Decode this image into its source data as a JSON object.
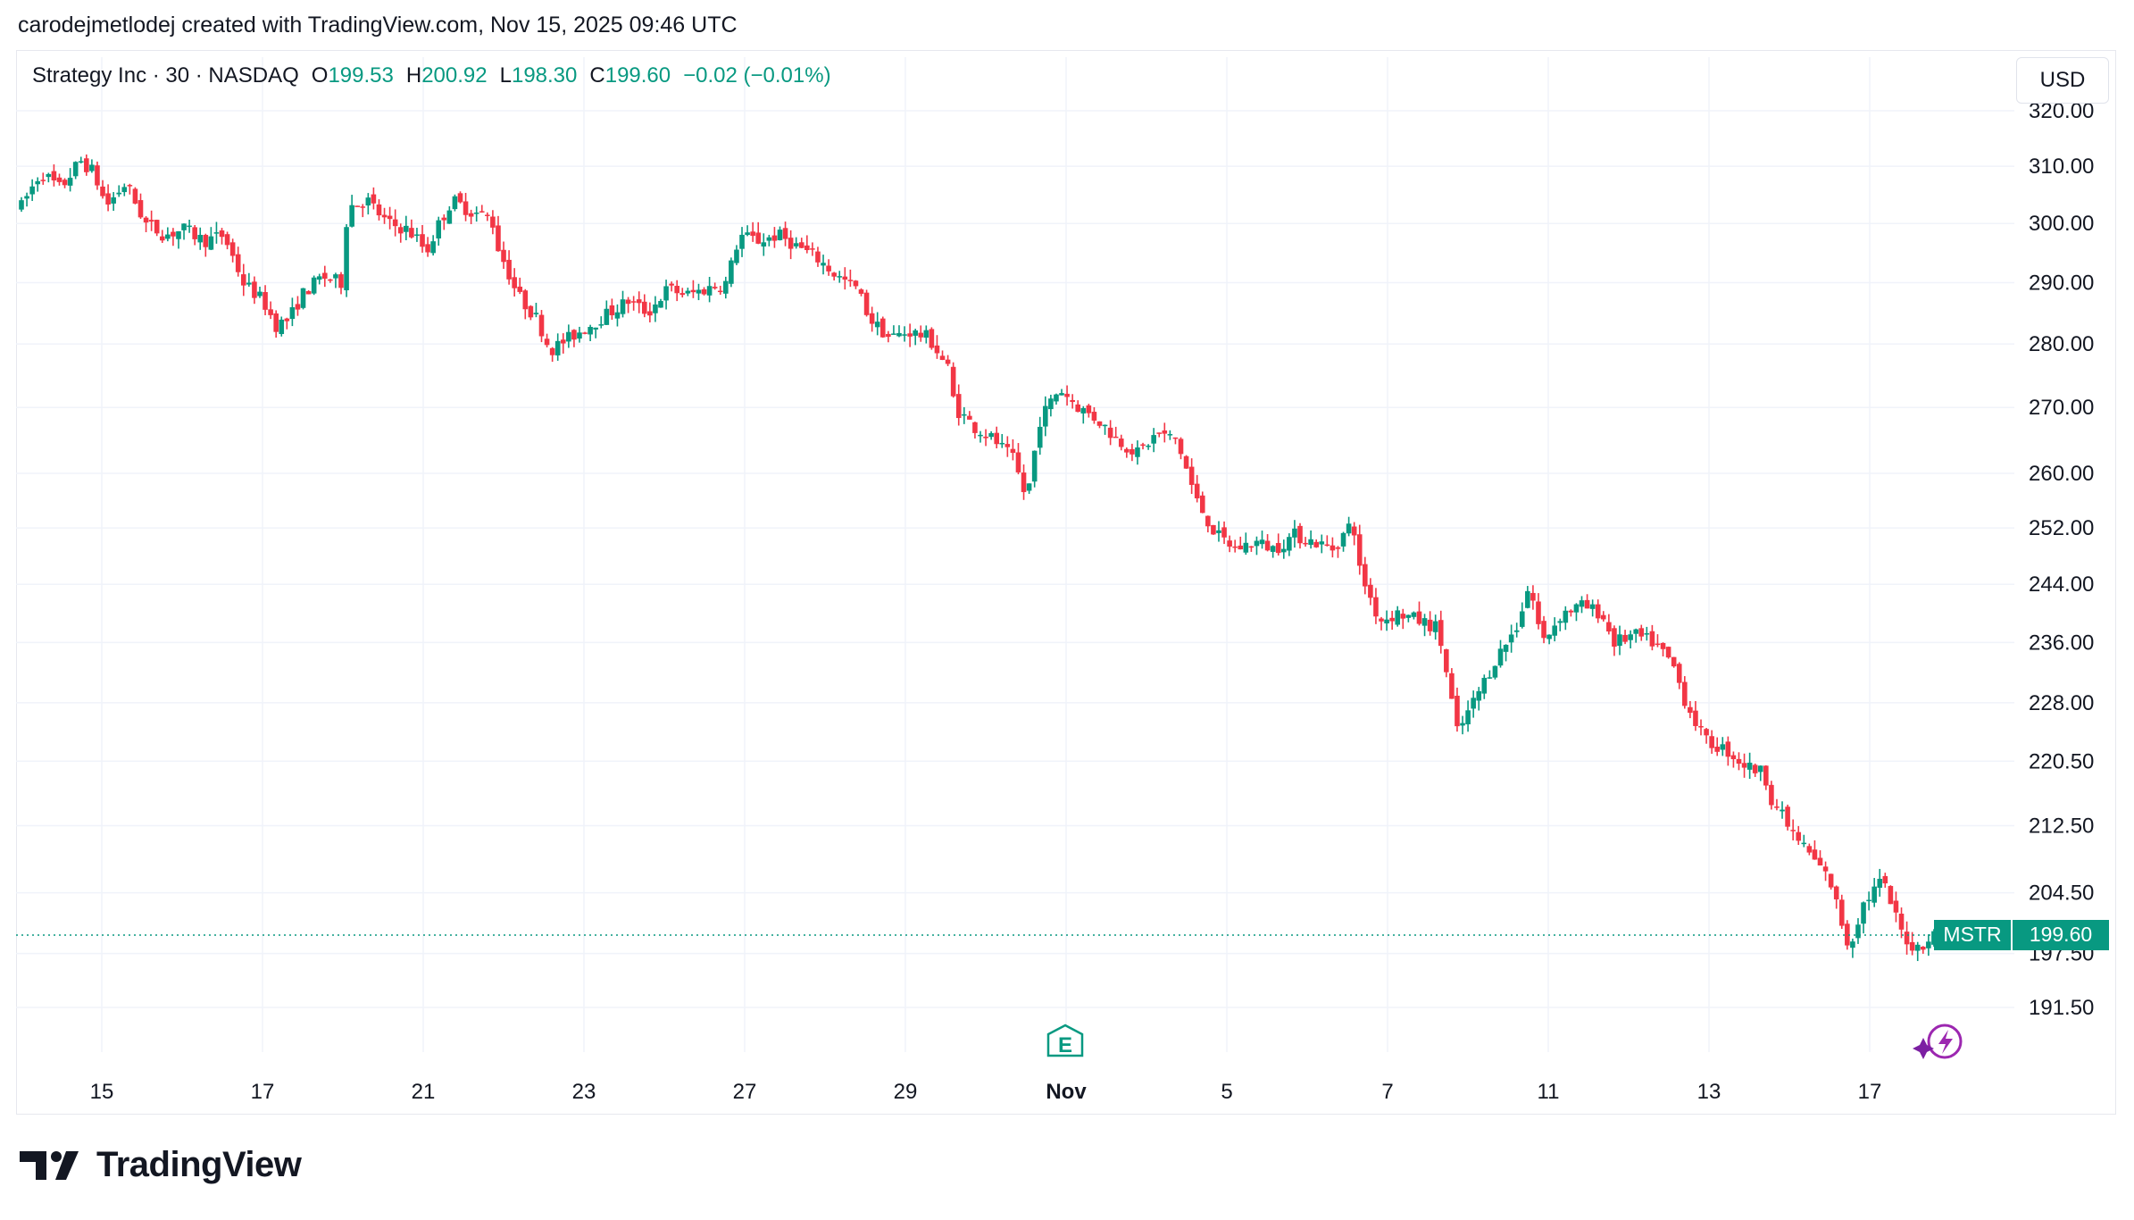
{
  "header": {
    "attribution": "carodejmetlodej created with TradingView.com, Nov 15, 2025 09:46 UTC"
  },
  "legend": {
    "symbol": "Strategy Inc · 30 · NASDAQ",
    "open_key": "O",
    "open": "199.53",
    "high_key": "H",
    "high": "200.92",
    "low_key": "L",
    "low": "198.30",
    "close_key": "C",
    "close": "199.60",
    "change": "−0.02 (−0.01%)"
  },
  "currency": "USD",
  "price_tag": {
    "ticker": "MSTR",
    "price": "199.60"
  },
  "brand": "TradingView",
  "colors": {
    "up": "#089981",
    "down": "#F23645",
    "grid": "#F0F3FA",
    "text": "#131722"
  },
  "icons": {
    "earnings": "E",
    "spark": "lightning-icon"
  },
  "chart_data": {
    "type": "candlestick",
    "y_scale": "log",
    "ylim": [
      186,
      323
    ],
    "y_ticks": [
      "320.00",
      "310.00",
      "300.00",
      "290.00",
      "280.00",
      "270.00",
      "260.00",
      "252.00",
      "244.00",
      "236.00",
      "228.00",
      "220.50",
      "212.50",
      "204.50",
      "197.50",
      "191.50"
    ],
    "x_ticks": [
      {
        "label": "15",
        "day": 15,
        "bold": false
      },
      {
        "label": "17",
        "day": 17,
        "bold": false
      },
      {
        "label": "21",
        "day": 21,
        "bold": false
      },
      {
        "label": "23",
        "day": 23,
        "bold": false
      },
      {
        "label": "27",
        "day": 27,
        "bold": false
      },
      {
        "label": "29",
        "day": 29,
        "bold": false
      },
      {
        "label": "Nov",
        "day": 32,
        "bold": true
      },
      {
        "label": "5",
        "day": 36,
        "bold": false
      },
      {
        "label": "7",
        "day": 38,
        "bold": false
      },
      {
        "label": "11",
        "day": 42,
        "bold": false
      },
      {
        "label": "13",
        "day": 44,
        "bold": false
      },
      {
        "label": "17",
        "day": 48,
        "bold": false
      }
    ],
    "x_axis_note": "sessions: Oct 14-17, 20-24, 27-31, Nov 3-7, 10-14; x index is trading sessions",
    "last_price": 199.6,
    "closes_path": [
      [
        0,
        303
      ],
      [
        0.3,
        309
      ],
      [
        0.6,
        306
      ],
      [
        0.9,
        311
      ],
      [
        1.1,
        309
      ],
      [
        1.3,
        303
      ],
      [
        1.6,
        307
      ],
      [
        1.9,
        300
      ],
      [
        2.2,
        298
      ],
      [
        2.5,
        299
      ],
      [
        2.8,
        297
      ],
      [
        3.1,
        298
      ],
      [
        3.4,
        290
      ],
      [
        3.7,
        287
      ],
      [
        3.9,
        283
      ],
      [
        4.1,
        284
      ],
      [
        4.3,
        288
      ],
      [
        4.6,
        291
      ],
      [
        4.9,
        290
      ],
      [
        5.0,
        303
      ],
      [
        5.3,
        304
      ],
      [
        5.6,
        300
      ],
      [
        5.9,
        299
      ],
      [
        6.1,
        297
      ],
      [
        6.2,
        295
      ],
      [
        6.4,
        300
      ],
      [
        6.6,
        304
      ],
      [
        6.9,
        302
      ],
      [
        7.2,
        301
      ],
      [
        7.3,
        296
      ],
      [
        7.6,
        288
      ],
      [
        7.9,
        284
      ],
      [
        8.1,
        279
      ],
      [
        8.4,
        281
      ],
      [
        8.7,
        283
      ],
      [
        9.0,
        285
      ],
      [
        9.3,
        287
      ],
      [
        9.6,
        285
      ],
      [
        9.9,
        289
      ],
      [
        10.2,
        288
      ],
      [
        10.5,
        289
      ],
      [
        10.8,
        290
      ],
      [
        11.0,
        298
      ],
      [
        11.3,
        297
      ],
      [
        11.6,
        298
      ],
      [
        11.9,
        296
      ],
      [
        12.2,
        294
      ],
      [
        12.5,
        291
      ],
      [
        12.8,
        289
      ],
      [
        13.0,
        284
      ],
      [
        13.3,
        281
      ],
      [
        13.6,
        282
      ],
      [
        13.9,
        281
      ],
      [
        14.2,
        276
      ],
      [
        14.3,
        270
      ],
      [
        14.6,
        267
      ],
      [
        14.9,
        265
      ],
      [
        15.2,
        262
      ],
      [
        15.4,
        256
      ],
      [
        15.6,
        268
      ],
      [
        15.9,
        273
      ],
      [
        16.2,
        270
      ],
      [
        16.5,
        268
      ],
      [
        16.8,
        265
      ],
      [
        17.1,
        263
      ],
      [
        17.4,
        266
      ],
      [
        17.7,
        265
      ],
      [
        18.0,
        256
      ],
      [
        18.3,
        251
      ],
      [
        18.6,
        249
      ],
      [
        18.9,
        250
      ],
      [
        19.2,
        249
      ],
      [
        19.5,
        251
      ],
      [
        19.8,
        250
      ],
      [
        20.1,
        249
      ],
      [
        20.4,
        253
      ],
      [
        20.5,
        246
      ],
      [
        20.8,
        239
      ],
      [
        21.1,
        240
      ],
      [
        21.4,
        239
      ],
      [
        21.7,
        238
      ],
      [
        22.0,
        224
      ],
      [
        22.3,
        229
      ],
      [
        22.6,
        234
      ],
      [
        22.9,
        238
      ],
      [
        23.1,
        244
      ],
      [
        23.3,
        236
      ],
      [
        23.6,
        240
      ],
      [
        23.9,
        241
      ],
      [
        24.2,
        240
      ],
      [
        24.4,
        236
      ],
      [
        24.7,
        237
      ],
      [
        25.0,
        236
      ],
      [
        25.3,
        233
      ],
      [
        25.5,
        228
      ],
      [
        25.8,
        223
      ],
      [
        26.1,
        222
      ],
      [
        26.4,
        220
      ],
      [
        26.7,
        219
      ],
      [
        26.8,
        216
      ],
      [
        27.1,
        212
      ],
      [
        27.4,
        209
      ],
      [
        27.7,
        206
      ],
      [
        28.0,
        198
      ],
      [
        28.2,
        203
      ],
      [
        28.5,
        206
      ],
      [
        28.8,
        200
      ],
      [
        29.0,
        198
      ],
      [
        29.3,
        199.6
      ]
    ]
  }
}
